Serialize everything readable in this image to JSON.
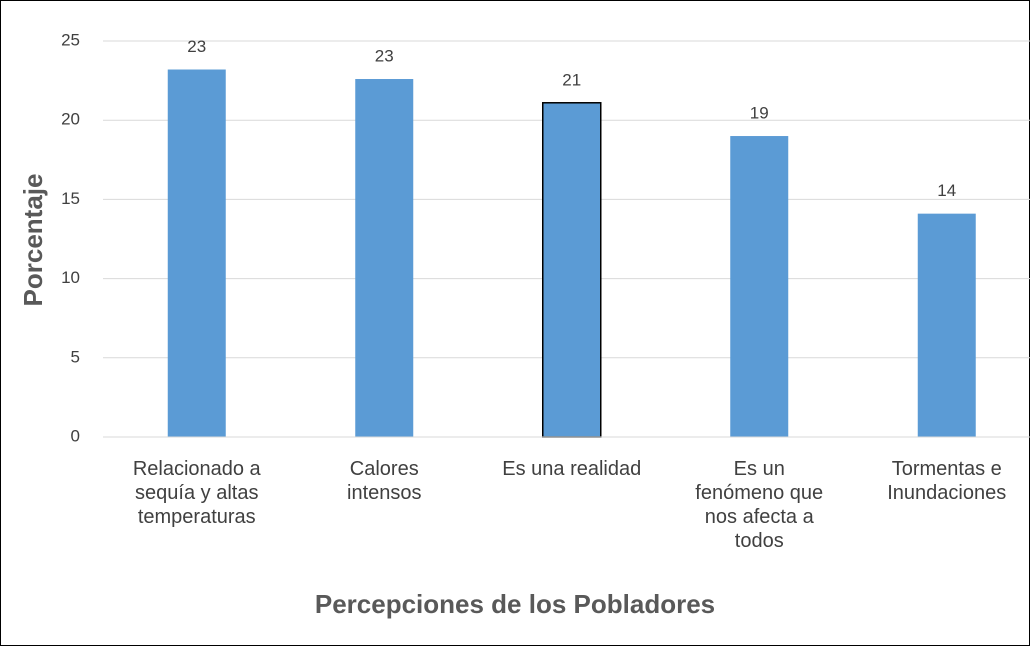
{
  "chart_data": {
    "type": "bar",
    "x_label": "Percepciones de los Pobladores",
    "y_label": "Porcentaje",
    "categories": [
      "Relacionado a\nsequía y altas\ntemperaturas",
      "Calores\nintensos",
      "Es una realidad",
      "Es un\nfenómeno que\nnos afecta a\ntodos",
      "Tormentas e\nInundaciones"
    ],
    "values": [
      23.2,
      22.6,
      21.1,
      19.0,
      14.1
    ],
    "value_labels": [
      "23",
      "23",
      "21",
      "19",
      "14"
    ],
    "color": "#5b9bd5",
    "edge_colors": [
      null,
      null,
      "#000000",
      null,
      null
    ],
    "ylim": [
      0,
      25
    ],
    "yticks": [
      0,
      5,
      10,
      15,
      20,
      25
    ],
    "grid": true
  }
}
